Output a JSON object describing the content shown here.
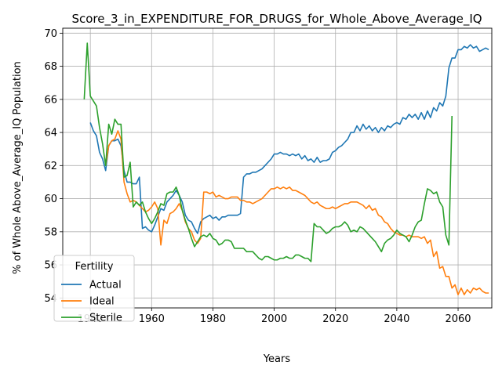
{
  "chart_data": {
    "type": "line",
    "title": "Score_3_in_EXPENDITURE_FOR_DRUGS_for_Whole_Above_Average_IQ",
    "xlabel": "Years",
    "ylabel": "% of Whole Above_Average_IQ Population",
    "xlim": [
      1931,
      2071
    ],
    "ylim": [
      53.4,
      70.3
    ],
    "xticks": [
      1940,
      1960,
      1980,
      2000,
      2020,
      2040,
      2060
    ],
    "yticks": [
      54,
      56,
      58,
      60,
      62,
      64,
      66,
      68,
      70
    ],
    "grid": true,
    "legend": {
      "title": "Fertility",
      "placement": "lower-left"
    },
    "series": [
      {
        "name": "Actual",
        "color": "#1f77b4",
        "x": [
          1940,
          1941,
          1942,
          1943,
          1944,
          1945,
          1946,
          1947,
          1948,
          1949,
          1950,
          1951,
          1952,
          1953,
          1954,
          1955,
          1956,
          1957,
          1958,
          1959,
          1960,
          1961,
          1962,
          1963,
          1964,
          1965,
          1966,
          1967,
          1968,
          1969,
          1970,
          1971,
          1972,
          1973,
          1974,
          1975,
          1976,
          1977,
          1978,
          1979,
          1980,
          1981,
          1982,
          1983,
          1984,
          1985,
          1986,
          1987,
          1988,
          1989,
          1990,
          1991,
          1992,
          1993,
          1994,
          1995,
          1996,
          1997,
          1998,
          1999,
          2000,
          2001,
          2002,
          2003,
          2004,
          2005,
          2006,
          2007,
          2008,
          2009,
          2010,
          2011,
          2012,
          2013,
          2014,
          2015,
          2016,
          2017,
          2018,
          2019,
          2020,
          2021,
          2022,
          2023,
          2024,
          2025,
          2026,
          2027,
          2028,
          2029,
          2030,
          2031,
          2032,
          2033,
          2034,
          2035,
          2036,
          2037,
          2038,
          2039,
          2040,
          2041,
          2042,
          2043,
          2044,
          2045,
          2046,
          2047,
          2048,
          2049,
          2050,
          2051,
          2052,
          2053,
          2054,
          2055,
          2056,
          2057,
          2058,
          2059,
          2060,
          2061,
          2062,
          2063,
          2064,
          2065,
          2066,
          2067,
          2068,
          2069,
          2070
        ],
        "values": [
          64.6,
          64.1,
          63.8,
          62.8,
          62.4,
          61.7,
          63.2,
          63.5,
          63.5,
          63.6,
          63.2,
          61.7,
          61.0,
          61.0,
          60.9,
          60.9,
          61.3,
          58.2,
          58.3,
          58.1,
          58.0,
          58.4,
          58.9,
          59.4,
          59.3,
          59.8,
          60.0,
          60.2,
          60.5,
          60.2,
          59.8,
          59.0,
          58.7,
          58.6,
          58.2,
          57.9,
          58.6,
          58.8,
          58.9,
          59.0,
          58.8,
          58.9,
          58.7,
          58.9,
          58.9,
          59.0,
          59.0,
          59.0,
          59.0,
          59.1,
          61.3,
          61.5,
          61.5,
          61.6,
          61.6,
          61.7,
          61.8,
          62.0,
          62.2,
          62.4,
          62.7,
          62.7,
          62.8,
          62.7,
          62.7,
          62.6,
          62.7,
          62.6,
          62.7,
          62.4,
          62.6,
          62.3,
          62.4,
          62.2,
          62.5,
          62.2,
          62.3,
          62.3,
          62.4,
          62.8,
          62.9,
          63.1,
          63.2,
          63.4,
          63.6,
          64.0,
          64.0,
          64.4,
          64.1,
          64.5,
          64.2,
          64.4,
          64.1,
          64.3,
          64.0,
          64.3,
          64.1,
          64.4,
          64.3,
          64.5,
          64.6,
          64.5,
          64.9,
          64.8,
          65.1,
          64.9,
          65.1,
          64.8,
          65.2,
          64.8,
          65.3,
          64.9,
          65.5,
          65.3,
          65.8,
          65.6,
          66.2,
          67.9,
          68.5,
          68.5,
          69.0,
          69.0,
          69.2,
          69.1,
          69.3,
          69.1,
          69.2,
          68.9,
          69.0,
          69.1,
          69.0
        ],
        "x_end": 2070
      },
      {
        "name": "Ideal",
        "color": "#ff7f0e",
        "x": [
          1945,
          1946,
          1947,
          1948,
          1949,
          1950,
          1951,
          1952,
          1953,
          1954,
          1955,
          1956,
          1957,
          1958,
          1959,
          1960,
          1961,
          1962,
          1963,
          1964,
          1965,
          1966,
          1967,
          1968,
          1969,
          1970,
          1971,
          1972,
          1973,
          1974,
          1975,
          1976,
          1977,
          1978,
          1979,
          1980,
          1981,
          1982,
          1983,
          1984,
          1985,
          1986,
          1987,
          1988,
          1989,
          1990,
          1991,
          1992,
          1993,
          1994,
          1995,
          1996,
          1997,
          1998,
          1999,
          2000,
          2001,
          2002,
          2003,
          2004,
          2005,
          2006,
          2007,
          2008,
          2009,
          2010,
          2011,
          2012,
          2013,
          2014,
          2015,
          2016,
          2017,
          2018,
          2019,
          2020,
          2021,
          2022,
          2023,
          2024,
          2025,
          2026,
          2027,
          2028,
          2029,
          2030,
          2031,
          2032,
          2033,
          2034,
          2035,
          2036,
          2037,
          2038,
          2039,
          2040,
          2041,
          2042,
          2043,
          2044,
          2045,
          2046,
          2047,
          2048,
          2049,
          2050,
          2051,
          2052,
          2053,
          2054,
          2055,
          2056,
          2057,
          2058,
          2059,
          2060,
          2061,
          2062,
          2063,
          2064,
          2065,
          2066,
          2067,
          2068,
          2069,
          2070
        ],
        "values": [
          62.0,
          63.2,
          63.5,
          63.6,
          64.1,
          63.6,
          61.0,
          60.3,
          59.8,
          59.9,
          59.8,
          59.6,
          59.4,
          59.2,
          59.3,
          59.5,
          59.8,
          59.4,
          57.2,
          58.7,
          58.5,
          59.1,
          59.2,
          59.4,
          59.7,
          59.3,
          58.6,
          58.2,
          58.0,
          57.5,
          57.3,
          57.6,
          60.4,
          60.4,
          60.3,
          60.4,
          60.1,
          60.2,
          60.1,
          60.0,
          60.0,
          60.1,
          60.1,
          60.1,
          59.9,
          59.9,
          59.8,
          59.8,
          59.7,
          59.8,
          59.9,
          60.0,
          60.2,
          60.4,
          60.6,
          60.6,
          60.7,
          60.6,
          60.7,
          60.6,
          60.7,
          60.5,
          60.5,
          60.4,
          60.3,
          60.2,
          60.0,
          59.8,
          59.7,
          59.8,
          59.6,
          59.5,
          59.4,
          59.4,
          59.5,
          59.4,
          59.5,
          59.6,
          59.7,
          59.7,
          59.8,
          59.8,
          59.8,
          59.7,
          59.6,
          59.4,
          59.6,
          59.3,
          59.4,
          59.0,
          58.9,
          58.6,
          58.5,
          58.2,
          58.0,
          57.9,
          57.8,
          57.8,
          57.7,
          57.8,
          57.7,
          57.7,
          57.7,
          57.6,
          57.7,
          57.3,
          57.5,
          56.5,
          56.8,
          55.8,
          55.9,
          55.3,
          55.3,
          54.6,
          54.8,
          54.2,
          54.6,
          54.2,
          54.5,
          54.3,
          54.6,
          54.5,
          54.6,
          54.4,
          54.3,
          54.3
        ],
        "x_end": 2070
      },
      {
        "name": "Sterile",
        "color": "#2ca02c",
        "x": [
          1938,
          1939,
          1940,
          1941,
          1942,
          1943,
          1944,
          1945,
          1946,
          1947,
          1948,
          1949,
          1950,
          1951,
          1952,
          1953,
          1954,
          1955,
          1956,
          1957,
          1958,
          1959,
          1960,
          1961,
          1962,
          1963,
          1964,
          1965,
          1966,
          1967,
          1968,
          1969,
          1970,
          1971,
          1972,
          1973,
          1974,
          1975,
          1976,
          1977,
          1978,
          1979,
          1980,
          1981,
          1982,
          1983,
          1984,
          1985,
          1986,
          1987,
          1988,
          1989,
          1990,
          1991,
          1992,
          1993,
          1994,
          1995,
          1996,
          1997,
          1998,
          1999,
          2000,
          2001,
          2002,
          2003,
          2004,
          2005,
          2006,
          2007,
          2008,
          2009,
          2010,
          2011,
          2012,
          2013,
          2014,
          2015,
          2016,
          2017,
          2018,
          2019,
          2020,
          2021,
          2022,
          2023,
          2024,
          2025,
          2026,
          2027,
          2028,
          2029,
          2030,
          2031,
          2032,
          2033,
          2034,
          2035,
          2036,
          2037,
          2038,
          2039,
          2040,
          2041,
          2042,
          2043,
          2044,
          2045,
          2046,
          2047,
          2048,
          2049,
          2050,
          2051,
          2052,
          2053,
          2054,
          2055,
          2056,
          2057,
          2058
        ],
        "values": [
          66.0,
          69.4,
          66.2,
          65.9,
          65.6,
          64.3,
          63.3,
          62.0,
          64.5,
          63.9,
          64.8,
          64.5,
          64.5,
          61.3,
          61.4,
          62.2,
          59.5,
          59.8,
          59.6,
          59.8,
          59.2,
          58.8,
          58.5,
          58.8,
          59.2,
          59.7,
          59.6,
          60.3,
          60.4,
          60.4,
          60.7,
          60.2,
          59.3,
          58.7,
          58.2,
          57.6,
          57.1,
          57.4,
          57.7,
          57.8,
          57.7,
          57.9,
          57.6,
          57.5,
          57.2,
          57.3,
          57.5,
          57.5,
          57.4,
          57.0,
          57.0,
          57.0,
          57.0,
          56.8,
          56.8,
          56.8,
          56.6,
          56.4,
          56.3,
          56.5,
          56.5,
          56.4,
          56.3,
          56.3,
          56.4,
          56.4,
          56.5,
          56.4,
          56.4,
          56.6,
          56.6,
          56.5,
          56.4,
          56.4,
          56.2,
          58.5,
          58.3,
          58.3,
          58.1,
          57.9,
          58.0,
          58.2,
          58.3,
          58.3,
          58.4,
          58.6,
          58.4,
          58.0,
          58.1,
          58.0,
          58.3,
          58.2,
          58.0,
          57.8,
          57.6,
          57.4,
          57.1,
          56.8,
          57.3,
          57.5,
          57.6,
          57.8,
          58.1,
          57.9,
          57.8,
          57.7,
          57.4,
          57.8,
          58.3,
          58.6,
          58.7,
          59.7,
          60.6,
          60.5,
          60.3,
          60.4,
          59.8,
          59.5,
          57.8,
          57.2,
          65.0
        ]
      }
    ]
  }
}
